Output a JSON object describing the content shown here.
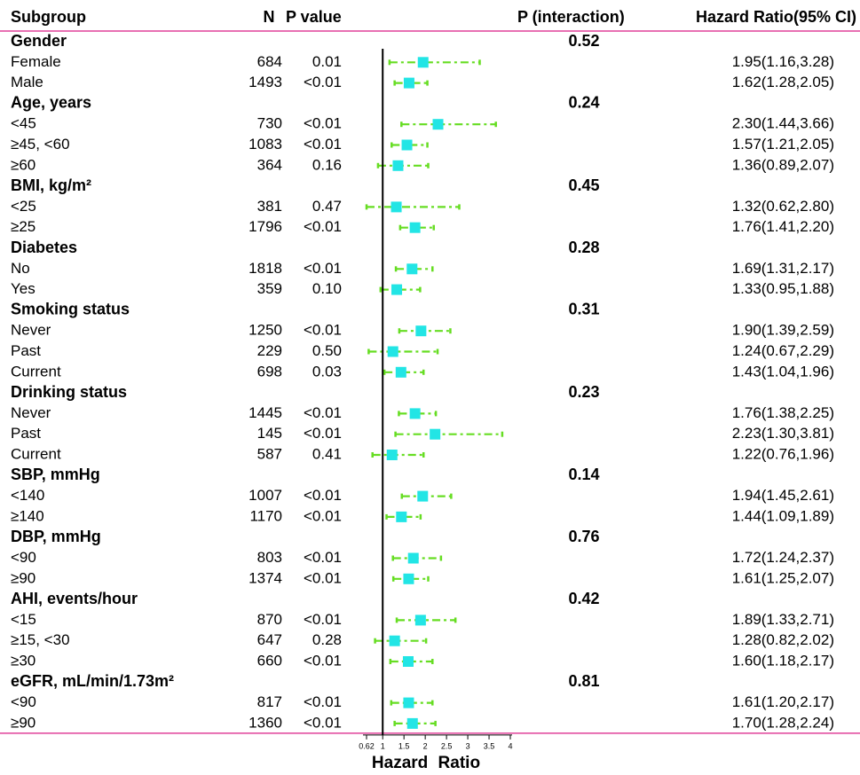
{
  "chart_data": {
    "type": "forest",
    "header": [
      "Subgroup",
      "N",
      "P value",
      "P (interaction)",
      "Hazard Ratio(95% CI)"
    ],
    "xlabel": "Hazard Ratio",
    "xlim": [
      0.62,
      4
    ],
    "xticks": [
      0.62,
      1,
      1.5,
      2,
      2.5,
      3,
      3.5,
      4
    ],
    "reference": 1,
    "ci_color": "#66dd22",
    "point_color": "#22e5e5",
    "rule_color": "#e0409a",
    "groups": [
      {
        "label": "Gender",
        "p_interaction": 0.52,
        "rows": [
          {
            "label": "Female",
            "n": 684,
            "p": "0.01",
            "hr": 1.95,
            "lower": 1.16,
            "upper": 3.28,
            "hr_label": "1.95(1.16,3.28)"
          },
          {
            "label": "Male",
            "n": 1493,
            "p": "<0.01",
            "hr": 1.62,
            "lower": 1.28,
            "upper": 2.05,
            "hr_label": "1.62(1.28,2.05)"
          }
        ]
      },
      {
        "label": "Age, years",
        "p_interaction": 0.24,
        "rows": [
          {
            "label": "<45",
            "n": 730,
            "p": "<0.01",
            "hr": 2.3,
            "lower": 1.44,
            "upper": 3.66,
            "hr_label": "2.30(1.44,3.66)"
          },
          {
            "label": "≥45, <60",
            "n": 1083,
            "p": "<0.01",
            "hr": 1.57,
            "lower": 1.21,
            "upper": 2.05,
            "hr_label": "1.57(1.21,2.05)"
          },
          {
            "label": "≥60",
            "n": 364,
            "p": "0.16",
            "hr": 1.36,
            "lower": 0.89,
            "upper": 2.07,
            "hr_label": "1.36(0.89,2.07)"
          }
        ]
      },
      {
        "label": "BMI, kg/m²",
        "p_interaction": 0.45,
        "rows": [
          {
            "label": "<25",
            "n": 381,
            "p": "0.47",
            "hr": 1.32,
            "lower": 0.62,
            "upper": 2.8,
            "hr_label": "1.32(0.62,2.80)"
          },
          {
            "label": "≥25",
            "n": 1796,
            "p": "<0.01",
            "hr": 1.76,
            "lower": 1.41,
            "upper": 2.2,
            "hr_label": "1.76(1.41,2.20)"
          }
        ]
      },
      {
        "label": "Diabetes",
        "p_interaction": 0.28,
        "rows": [
          {
            "label": "No",
            "n": 1818,
            "p": "<0.01",
            "hr": 1.69,
            "lower": 1.31,
            "upper": 2.17,
            "hr_label": "1.69(1.31,2.17)"
          },
          {
            "label": "Yes",
            "n": 359,
            "p": "0.10",
            "hr": 1.33,
            "lower": 0.95,
            "upper": 1.88,
            "hr_label": "1.33(0.95,1.88)"
          }
        ]
      },
      {
        "label": "Smoking status",
        "p_interaction": 0.31,
        "rows": [
          {
            "label": "Never",
            "n": 1250,
            "p": "<0.01",
            "hr": 1.9,
            "lower": 1.39,
            "upper": 2.59,
            "hr_label": "1.90(1.39,2.59)"
          },
          {
            "label": "Past",
            "n": 229,
            "p": "0.50",
            "hr": 1.24,
            "lower": 0.67,
            "upper": 2.29,
            "hr_label": "1.24(0.67,2.29)"
          },
          {
            "label": "Current",
            "n": 698,
            "p": "0.03",
            "hr": 1.43,
            "lower": 1.04,
            "upper": 1.96,
            "hr_label": "1.43(1.04,1.96)"
          }
        ]
      },
      {
        "label": "Drinking status",
        "p_interaction": 0.23,
        "rows": [
          {
            "label": "Never",
            "n": 1445,
            "p": "<0.01",
            "hr": 1.76,
            "lower": 1.38,
            "upper": 2.25,
            "hr_label": "1.76(1.38,2.25)"
          },
          {
            "label": "Past",
            "n": 145,
            "p": "<0.01",
            "hr": 2.23,
            "lower": 1.3,
            "upper": 3.81,
            "hr_label": "2.23(1.30,3.81)"
          },
          {
            "label": "Current",
            "n": 587,
            "p": "0.41",
            "hr": 1.22,
            "lower": 0.76,
            "upper": 1.96,
            "hr_label": "1.22(0.76,1.96)"
          }
        ]
      },
      {
        "label": "SBP, mmHg",
        "p_interaction": 0.14,
        "rows": [
          {
            "label": "<140",
            "n": 1007,
            "p": "<0.01",
            "hr": 1.94,
            "lower": 1.45,
            "upper": 2.61,
            "hr_label": "1.94(1.45,2.61)"
          },
          {
            "label": "≥140",
            "n": 1170,
            "p": "<0.01",
            "hr": 1.44,
            "lower": 1.09,
            "upper": 1.89,
            "hr_label": "1.44(1.09,1.89)"
          }
        ]
      },
      {
        "label": "DBP, mmHg",
        "p_interaction": 0.76,
        "rows": [
          {
            "label": "<90",
            "n": 803,
            "p": "<0.01",
            "hr": 1.72,
            "lower": 1.24,
            "upper": 2.37,
            "hr_label": "1.72(1.24,2.37)"
          },
          {
            "label": "≥90",
            "n": 1374,
            "p": "<0.01",
            "hr": 1.61,
            "lower": 1.25,
            "upper": 2.07,
            "hr_label": "1.61(1.25,2.07)"
          }
        ]
      },
      {
        "label": "AHI, events/hour",
        "p_interaction": 0.42,
        "rows": [
          {
            "label": "<15",
            "n": 870,
            "p": "<0.01",
            "hr": 1.89,
            "lower": 1.33,
            "upper": 2.71,
            "hr_label": "1.89(1.33,2.71)"
          },
          {
            "label": "≥15, <30",
            "n": 647,
            "p": "0.28",
            "hr": 1.28,
            "lower": 0.82,
            "upper": 2.02,
            "hr_label": "1.28(0.82,2.02)"
          },
          {
            "label": "≥30",
            "n": 660,
            "p": "<0.01",
            "hr": 1.6,
            "lower": 1.18,
            "upper": 2.17,
            "hr_label": "1.60(1.18,2.17)"
          }
        ]
      },
      {
        "label": "eGFR, mL/min/1.73m²",
        "p_interaction": 0.81,
        "rows": [
          {
            "label": "<90",
            "n": 817,
            "p": "<0.01",
            "hr": 1.61,
            "lower": 1.2,
            "upper": 2.17,
            "hr_label": "1.61(1.20,2.17)"
          },
          {
            "label": "≥90",
            "n": 1360,
            "p": "<0.01",
            "hr": 1.7,
            "lower": 1.28,
            "upper": 2.24,
            "hr_label": "1.70(1.28,2.24)"
          }
        ]
      }
    ]
  }
}
